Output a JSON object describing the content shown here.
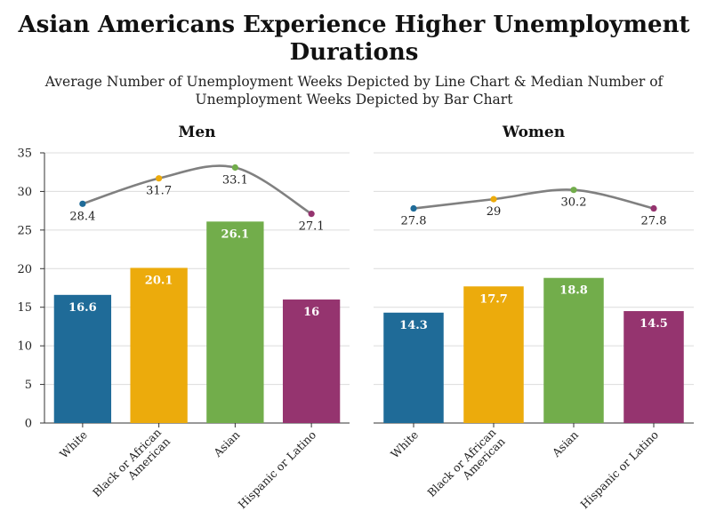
{
  "chart_data": {
    "type": "bar",
    "title": "Asian Americans Experience Higher Unemployment Durations",
    "subtitle": "Average Number of Unemployment Weeks Depicted by Line Chart & Median Number of Unemployment Weeks Depicted by Bar Chart",
    "ylim": [
      0,
      35
    ],
    "yticks": [
      0,
      5,
      10,
      15,
      20,
      25,
      30,
      35
    ],
    "grid": true,
    "categories": [
      "White",
      "Black or African American",
      "Asian",
      "Hispanic or Latino"
    ],
    "colors": [
      "#1f6b98",
      "#ecab0c",
      "#72ad4b",
      "#95346f"
    ],
    "line_color": "#808080",
    "panels": [
      {
        "title": "Men",
        "median_bars": [
          16.6,
          20.1,
          26.1,
          16
        ],
        "average_line": [
          28.4,
          31.7,
          33.1,
          27.1
        ]
      },
      {
        "title": "Women",
        "median_bars": [
          14.3,
          17.7,
          18.8,
          14.5
        ],
        "average_line": [
          27.8,
          29,
          30.2,
          27.8
        ]
      }
    ]
  }
}
